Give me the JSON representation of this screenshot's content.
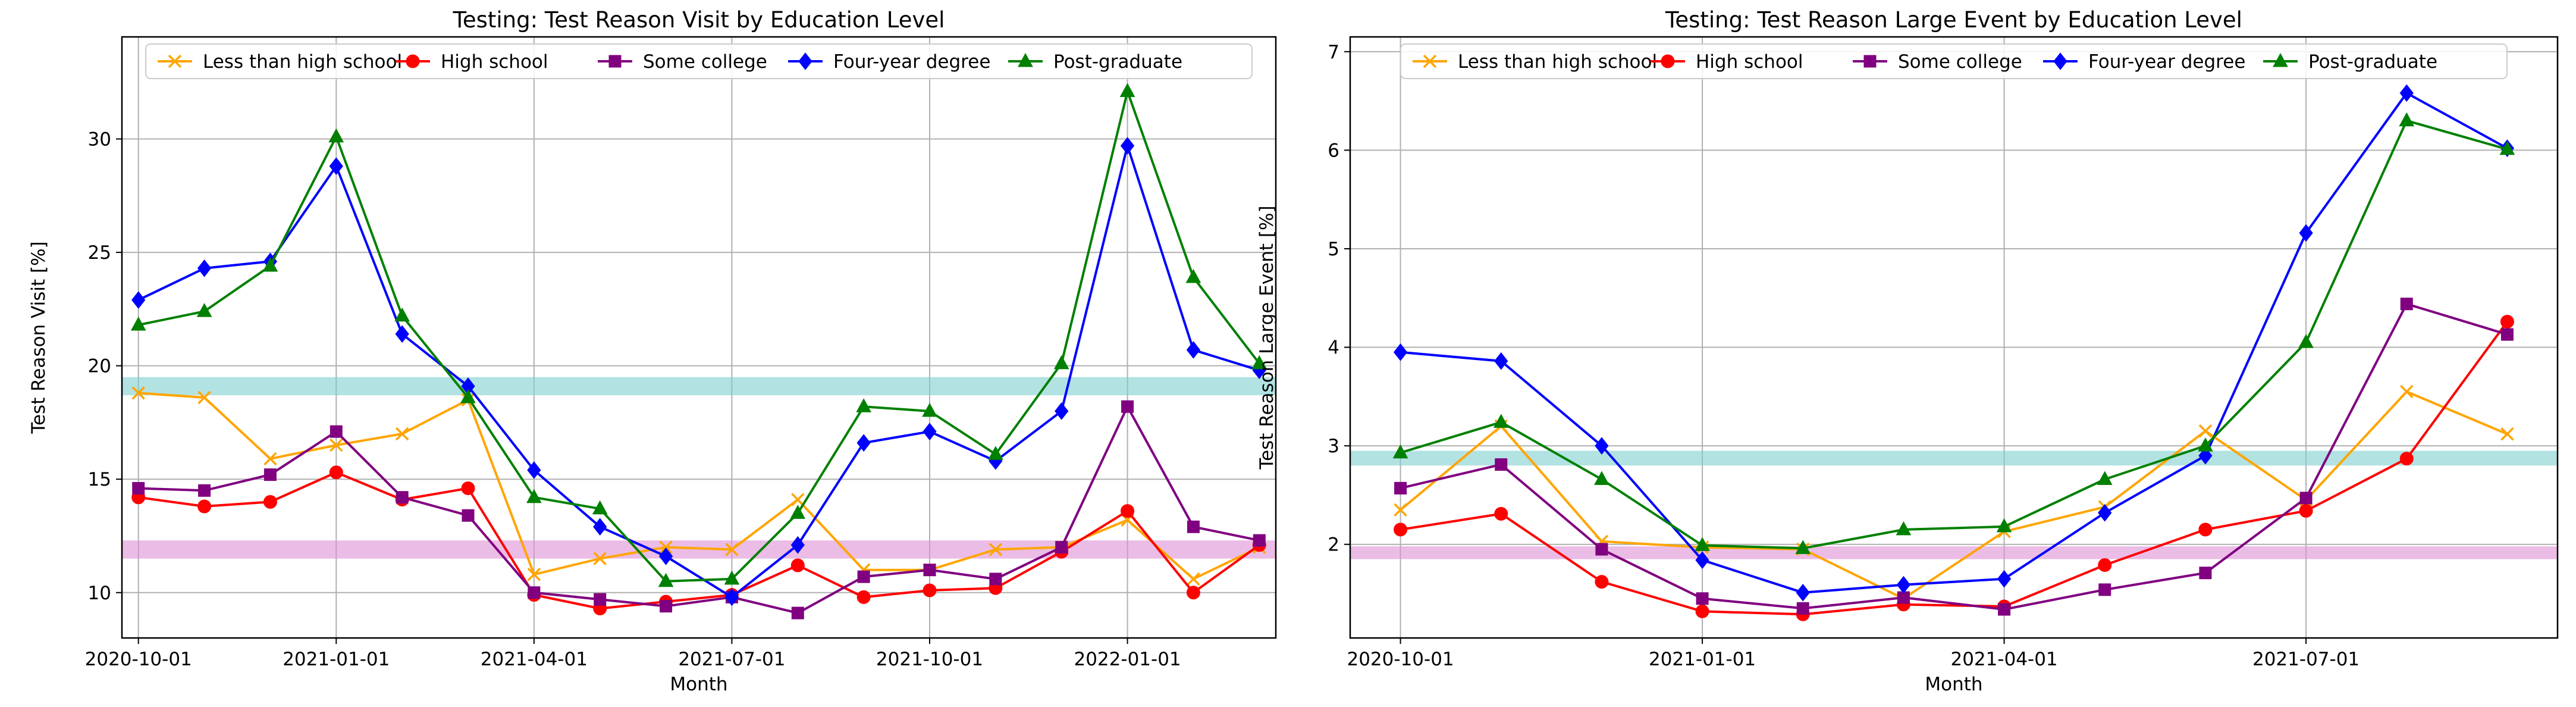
{
  "chart_data": [
    {
      "type": "line",
      "title": "Testing: Test Reason Visit by Education Level",
      "xlabel": "Month",
      "ylabel": "Test Reason Visit [%]",
      "x_tick_labels": [
        "2020-10-01",
        "2021-01-01",
        "2021-04-01",
        "2021-07-01",
        "2021-10-01",
        "2022-01-01"
      ],
      "x_tick_months": [
        0,
        3,
        6,
        9,
        12,
        15
      ],
      "xlim": [
        -0.25,
        17.25
      ],
      "ylim": [
        8.0,
        34.5
      ],
      "y_ticks": [
        10,
        15,
        20,
        25,
        30
      ],
      "grid": true,
      "legend_position": "top",
      "bands": [
        {
          "low": 18.7,
          "high": 19.5,
          "color": "#7fcfcf"
        },
        {
          "low": 11.5,
          "high": 12.3,
          "color": "#dd8fd6"
        }
      ],
      "series": [
        {
          "name": "Less than high school",
          "color": "#ffa500",
          "marker": "x",
          "x": [
            0,
            1,
            2,
            3,
            4,
            5,
            6,
            7,
            8,
            9,
            10,
            11,
            12,
            13,
            14,
            15,
            16,
            17
          ],
          "values": [
            18.8,
            18.6,
            15.9,
            16.5,
            17.0,
            18.5,
            10.8,
            11.5,
            12.0,
            11.9,
            14.1,
            11.0,
            11.0,
            11.9,
            12.0,
            13.2,
            10.6,
            12.0
          ]
        },
        {
          "name": "High school",
          "color": "#ff0000",
          "marker": "o",
          "x": [
            0,
            1,
            2,
            3,
            4,
            5,
            6,
            7,
            8,
            9,
            10,
            11,
            12,
            13,
            14,
            15,
            16,
            17
          ],
          "values": [
            14.2,
            13.8,
            14.0,
            15.3,
            14.1,
            14.6,
            9.9,
            9.3,
            9.6,
            9.9,
            11.2,
            9.8,
            10.1,
            10.2,
            11.8,
            13.6,
            10.0,
            12.1
          ]
        },
        {
          "name": "Some college",
          "color": "#800080",
          "marker": "s",
          "x": [
            0,
            1,
            2,
            3,
            4,
            5,
            6,
            7,
            8,
            9,
            10,
            11,
            12,
            13,
            14,
            15,
            16,
            17
          ],
          "values": [
            14.6,
            14.5,
            15.2,
            17.1,
            14.2,
            13.4,
            10.0,
            9.7,
            9.4,
            9.8,
            9.1,
            10.7,
            11.0,
            10.6,
            12.0,
            18.2,
            12.9,
            12.3
          ]
        },
        {
          "name": "Four-year degree",
          "color": "#0000ff",
          "marker": "D",
          "x": [
            0,
            1,
            2,
            3,
            4,
            5,
            6,
            7,
            8,
            9,
            10,
            11,
            12,
            13,
            14,
            15,
            16,
            17
          ],
          "values": [
            22.9,
            24.3,
            24.6,
            28.8,
            21.4,
            19.1,
            15.4,
            12.9,
            11.6,
            9.8,
            12.1,
            16.6,
            17.1,
            15.8,
            18.0,
            29.7,
            20.7,
            19.8
          ]
        },
        {
          "name": "Post-graduate",
          "color": "#008000",
          "marker": "^",
          "x": [
            0,
            1,
            2,
            3,
            4,
            5,
            6,
            7,
            8,
            9,
            10,
            11,
            12,
            13,
            14,
            15,
            16,
            17
          ],
          "values": [
            21.8,
            22.4,
            24.4,
            30.1,
            22.2,
            18.6,
            14.2,
            13.7,
            10.5,
            10.6,
            13.5,
            18.2,
            18.0,
            16.1,
            20.1,
            32.1,
            23.9,
            20.1
          ]
        }
      ]
    },
    {
      "type": "line",
      "title": "Testing: Test Reason Large Event by Education Level",
      "xlabel": "Month",
      "ylabel": "Test Reason Large Event [%]",
      "x_tick_labels": [
        "2020-10-01",
        "2021-01-01",
        "2021-04-01",
        "2021-07-01"
      ],
      "x_tick_months": [
        0,
        3,
        6,
        9
      ],
      "xlim": [
        -0.5,
        11.5
      ],
      "ylim": [
        1.05,
        7.15
      ],
      "y_ticks": [
        2,
        3,
        4,
        5,
        6,
        7
      ],
      "grid": true,
      "legend_position": "top",
      "bands": [
        {
          "low": 2.8,
          "high": 2.95,
          "color": "#7fcfcf"
        },
        {
          "low": 1.85,
          "high": 1.98,
          "color": "#dd8fd6"
        }
      ],
      "series": [
        {
          "name": "Less than high school",
          "color": "#ffa500",
          "marker": "x",
          "x": [
            0,
            1,
            2,
            3,
            4,
            5,
            6,
            7,
            8,
            9,
            10,
            11
          ],
          "values": [
            2.35,
            3.2,
            2.03,
            1.97,
            1.95,
            1.45,
            2.13,
            2.38,
            3.15,
            2.45,
            3.55,
            3.12
          ]
        },
        {
          "name": "High school",
          "color": "#ff0000",
          "marker": "o",
          "x": [
            0,
            1,
            2,
            3,
            4,
            5,
            6,
            7,
            8,
            9,
            10,
            11
          ],
          "values": [
            2.15,
            2.31,
            1.62,
            1.32,
            1.29,
            1.39,
            1.37,
            1.79,
            2.15,
            2.34,
            2.87,
            4.26
          ]
        },
        {
          "name": "Some college",
          "color": "#800080",
          "marker": "s",
          "x": [
            0,
            1,
            2,
            3,
            4,
            5,
            6,
            7,
            8,
            9,
            10,
            11
          ],
          "values": [
            2.57,
            2.81,
            1.95,
            1.45,
            1.35,
            1.46,
            1.34,
            1.54,
            1.71,
            2.47,
            4.44,
            4.13
          ]
        },
        {
          "name": "Four-year degree",
          "color": "#0000ff",
          "marker": "D",
          "x": [
            0,
            1,
            2,
            3,
            4,
            5,
            6,
            7,
            8,
            9,
            10,
            11
          ],
          "values": [
            3.95,
            3.86,
            3.0,
            1.84,
            1.51,
            1.59,
            1.65,
            2.32,
            2.9,
            5.16,
            6.58,
            6.02
          ]
        },
        {
          "name": "Post-graduate",
          "color": "#008000",
          "marker": "^",
          "x": [
            0,
            1,
            2,
            3,
            4,
            5,
            6,
            7,
            8,
            9,
            10,
            11
          ],
          "values": [
            2.93,
            3.24,
            2.66,
            1.99,
            1.96,
            2.15,
            2.18,
            2.66,
            3.0,
            4.05,
            6.3,
            6.01
          ]
        }
      ]
    }
  ]
}
